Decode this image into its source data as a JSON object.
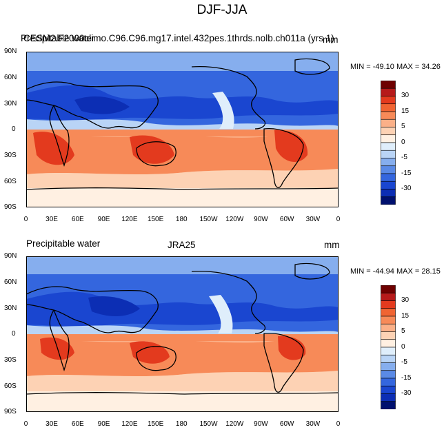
{
  "title": "DJF-JJA",
  "panels": [
    {
      "left_label": "Precipitable water",
      "overlap_label": "CESM2.F2000climo.C96.C96.mg17.intel.432pes.1thrds.nolb.ch011a (yrs 1)",
      "units": "mm",
      "min_max": "MIN = -49.10 MAX =  34.26"
    },
    {
      "left_label": "Precipitable water",
      "center_label": "JRA25",
      "units": "mm",
      "min_max": "MIN = -44.94 MAX =  28.15"
    }
  ],
  "lat_ticks": [
    "90N",
    "60N",
    "30N",
    "0",
    "30S",
    "60S",
    "90S"
  ],
  "lon_ticks": [
    "0",
    "30E",
    "60E",
    "90E",
    "120E",
    "150E",
    "180",
    "150W",
    "120W",
    "90W",
    "60W",
    "30W",
    "0"
  ],
  "colorbar": {
    "labels": [
      "30",
      "15",
      "5",
      "0",
      "-5",
      "-15",
      "-30"
    ],
    "colors": [
      "#6e0000",
      "#b61a1a",
      "#e33a1e",
      "#f06432",
      "#f78a58",
      "#fbb088",
      "#fdd2b4",
      "#fff0e2",
      "#dfeefb",
      "#b9d4f6",
      "#86aeee",
      "#5a8ae6",
      "#3466de",
      "#1a46d0",
      "#0c2eb4",
      "#00106e"
    ]
  }
}
